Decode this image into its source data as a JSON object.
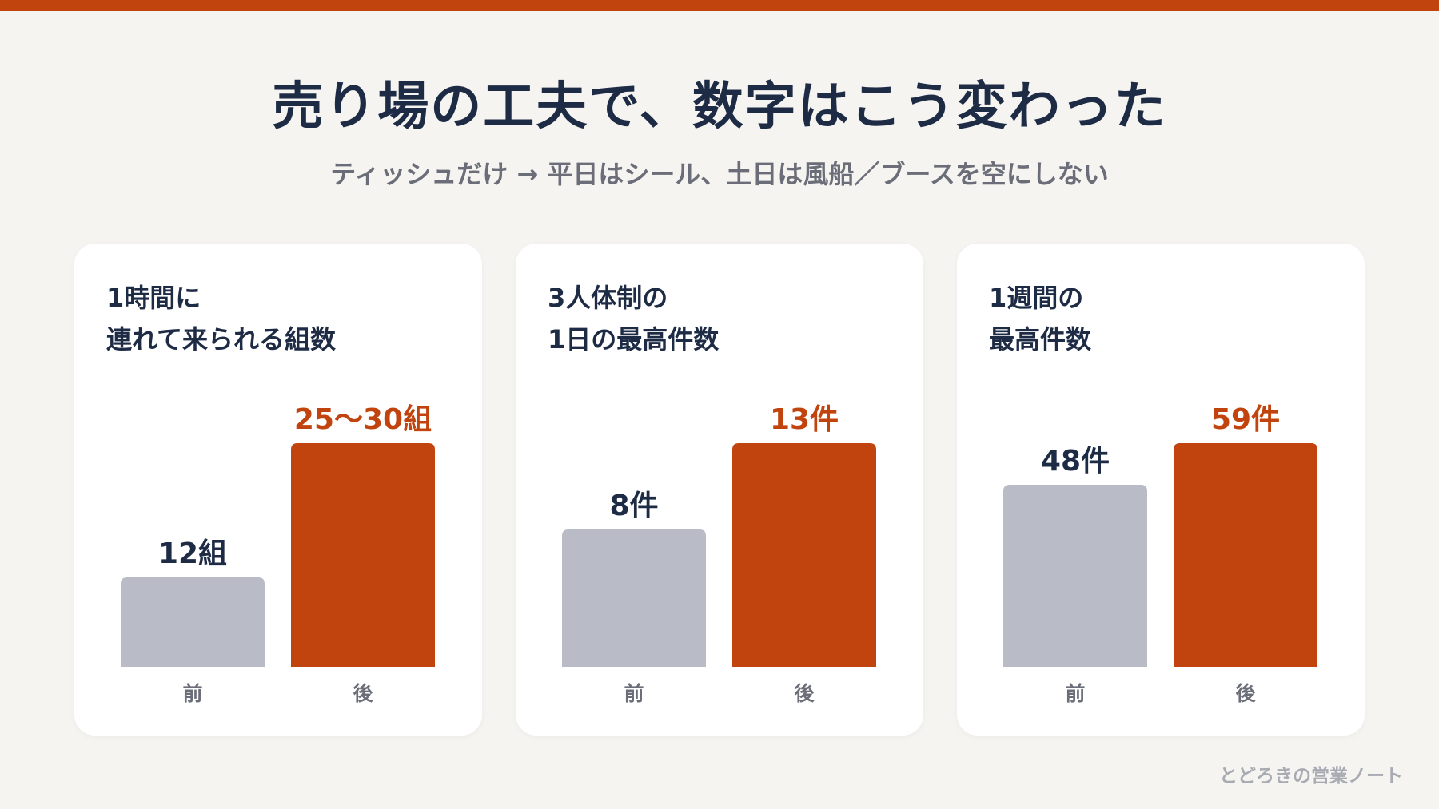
{
  "header": {
    "title": "売り場の工夫で、数字はこう変わった",
    "subtitle": "ティッシュだけ → 平日はシール、土日は風船／ブースを空にしない"
  },
  "footer": {
    "brand": "とどろきの営業ノート"
  },
  "colors": {
    "accent": "#c1440e",
    "before": "#b9bcc7",
    "text": "#1e2b45",
    "muted": "#6b6e78",
    "background": "#f5f4f1"
  },
  "chart_data": [
    {
      "type": "bar",
      "title_lines": [
        "1時間に",
        "連れて来られる組数"
      ],
      "categories": [
        "前",
        "後"
      ],
      "values": [
        12,
        30
      ],
      "value_labels": [
        "12組",
        "25〜30組"
      ],
      "ylim": [
        0,
        30
      ]
    },
    {
      "type": "bar",
      "title_lines": [
        "3人体制の",
        "1日の最高件数"
      ],
      "categories": [
        "前",
        "後"
      ],
      "values": [
        8,
        13
      ],
      "value_labels": [
        "8件",
        "13件"
      ],
      "ylim": [
        0,
        13
      ]
    },
    {
      "type": "bar",
      "title_lines": [
        "1週間の",
        "最高件数"
      ],
      "categories": [
        "前",
        "後"
      ],
      "values": [
        48,
        59
      ],
      "value_labels": [
        "48件",
        "59件"
      ],
      "ylim": [
        0,
        59
      ]
    }
  ]
}
